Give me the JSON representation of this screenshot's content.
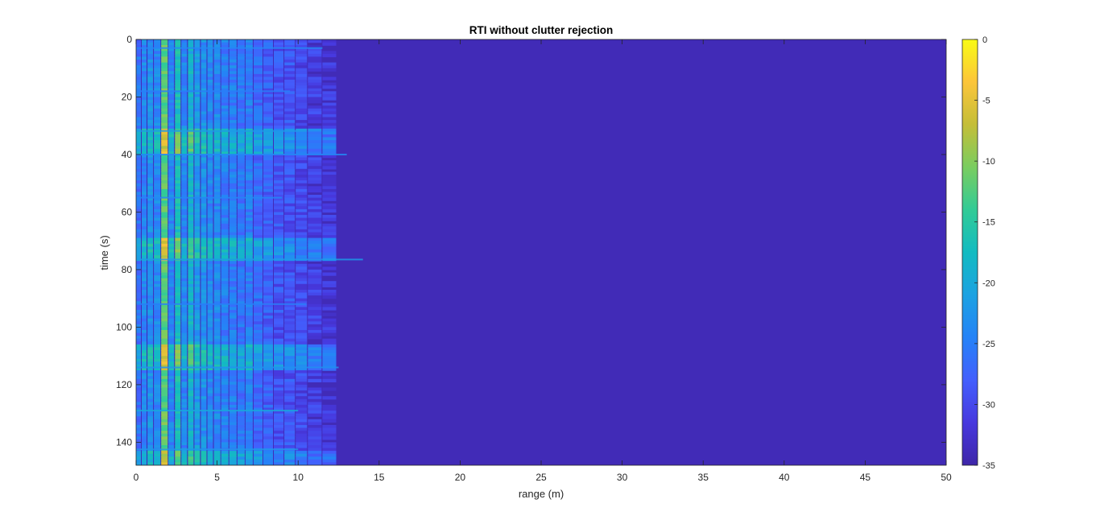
{
  "chart_data": {
    "type": "heatmap",
    "title": "RTI without clutter rejection",
    "xlabel": "range (m)",
    "ylabel": "time (s)",
    "xlim": [
      0,
      50
    ],
    "ylim": [
      0,
      148
    ],
    "y_reversed": true,
    "x_ticks": [
      0,
      5,
      10,
      15,
      20,
      25,
      30,
      35,
      40,
      45,
      50
    ],
    "y_ticks": [
      0,
      20,
      40,
      60,
      80,
      100,
      120,
      140
    ],
    "colorbar": {
      "colormap": "parula",
      "clim": [
        -35,
        0
      ],
      "ticks": [
        0,
        -5,
        -10,
        -15,
        -20,
        -25,
        -30,
        -35
      ],
      "location": "right"
    },
    "background_level_db": -34,
    "range_columns_m": [
      0.2,
      0.5,
      0.9,
      1.3,
      1.8,
      2.2,
      2.6,
      3.0,
      3.4,
      3.8,
      4.2,
      4.6,
      5.0,
      5.5,
      6.0,
      6.5,
      7.0,
      7.5,
      8.2,
      8.8,
      9.5,
      10.2,
      11.0,
      12.0
    ],
    "range_column_levels_db": [
      -26,
      -24,
      -23,
      -24,
      -12,
      -24,
      -17,
      -24,
      -19,
      -22,
      -23,
      -24,
      -24,
      -25,
      -25,
      -26,
      -25,
      -27,
      -28,
      -29,
      -29,
      -30,
      -31,
      -32
    ],
    "strong_time_bands_s": [
      {
        "start": 31,
        "end": 40,
        "boost_db": 6
      },
      {
        "start": 69,
        "end": 77,
        "boost_db": 6
      },
      {
        "start": 106,
        "end": 115,
        "boost_db": 6
      },
      {
        "start": 143,
        "end": 148,
        "boost_db": 5
      }
    ],
    "streaks": [
      {
        "time_s": 3,
        "extent_m": 11.5,
        "level_db": -24
      },
      {
        "time_s": 18,
        "extent_m": 9.5,
        "level_db": -25
      },
      {
        "time_s": 31.8,
        "extent_m": 10.5,
        "level_db": -22
      },
      {
        "time_s": 40,
        "extent_m": 13,
        "level_db": -24
      },
      {
        "time_s": 55,
        "extent_m": 9.0,
        "level_db": -24
      },
      {
        "time_s": 76.5,
        "extent_m": 14,
        "level_db": -22
      },
      {
        "time_s": 92,
        "extent_m": 10.5,
        "level_db": -25
      },
      {
        "time_s": 114,
        "extent_m": 12.5,
        "level_db": -23
      },
      {
        "time_s": 129,
        "extent_m": 10.0,
        "level_db": -20
      },
      {
        "time_s": 142.5,
        "extent_m": 10.0,
        "level_db": -22
      }
    ]
  }
}
